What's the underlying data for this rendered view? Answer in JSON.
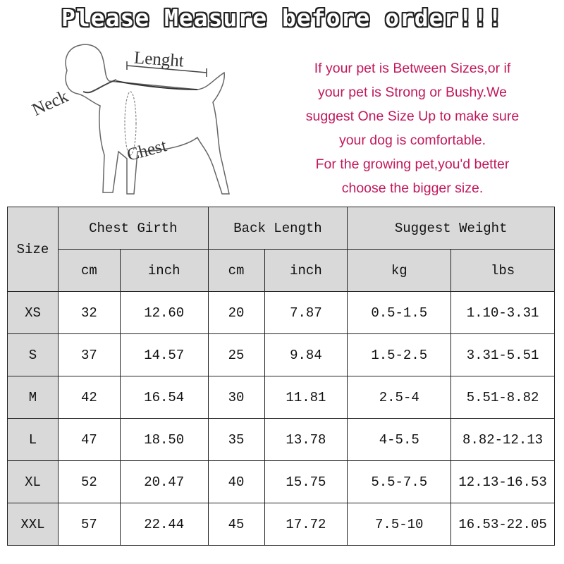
{
  "title": "Please Measure before order!!!",
  "diagram": {
    "length_label": "Lenght",
    "neck_label": "Neck",
    "chest_label": "Chest"
  },
  "advice": [
    "If your pet is Between Sizes,or if",
    "your pet is Strong or Bushy.We",
    "suggest One Size Up to make sure",
    "your dog is comfortable.",
    "For the growing pet,you'd better",
    "choose the bigger size."
  ],
  "colors": {
    "advice_text": "#c2185b",
    "header_bg": "#d9d9d9"
  },
  "table": {
    "size_header": "Size",
    "groups": [
      "Chest Girth",
      "Back Length",
      "Suggest Weight"
    ],
    "units": [
      "cm",
      "inch",
      "cm",
      "inch",
      "kg",
      "lbs"
    ],
    "rows": [
      [
        "XS",
        "32",
        "12.60",
        "20",
        "7.87",
        "0.5-1.5",
        "1.10-3.31"
      ],
      [
        "S",
        "37",
        "14.57",
        "25",
        "9.84",
        "1.5-2.5",
        "3.31-5.51"
      ],
      [
        "M",
        "42",
        "16.54",
        "30",
        "11.81",
        "2.5-4",
        "5.51-8.82"
      ],
      [
        "L",
        "47",
        "18.50",
        "35",
        "13.78",
        "4-5.5",
        "8.82-12.13"
      ],
      [
        "XL",
        "52",
        "20.47",
        "40",
        "15.75",
        "5.5-7.5",
        "12.13-16.53"
      ],
      [
        "XXL",
        "57",
        "22.44",
        "45",
        "17.72",
        "7.5-10",
        "16.53-22.05"
      ]
    ]
  }
}
